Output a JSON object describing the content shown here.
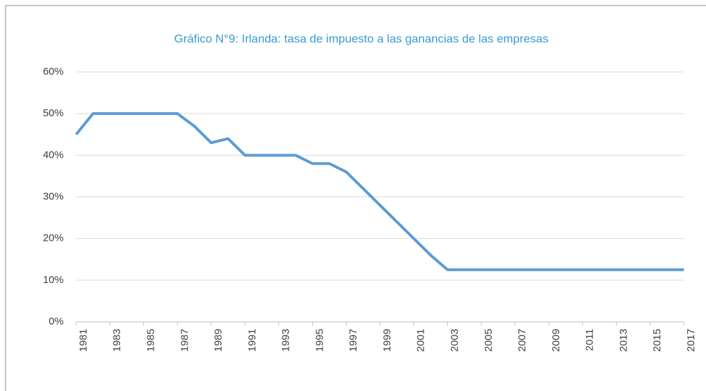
{
  "chart_data": {
    "type": "line",
    "title": "Gráfico N°9: Irlanda: tasa de impuesto a las ganancias de las empresas",
    "x": [
      1981,
      1982,
      1983,
      1984,
      1985,
      1986,
      1987,
      1988,
      1989,
      1990,
      1991,
      1992,
      1993,
      1994,
      1995,
      1996,
      1997,
      1998,
      1999,
      2000,
      2001,
      2002,
      2003,
      2004,
      2005,
      2006,
      2007,
      2008,
      2009,
      2010,
      2011,
      2012,
      2013,
      2014,
      2015,
      2016,
      2017
    ],
    "series": [
      {
        "name": "Irlanda",
        "color": "#5b9bd5",
        "values": [
          45,
          50,
          50,
          50,
          50,
          50,
          50,
          47,
          43,
          44,
          40,
          40,
          40,
          40,
          38,
          38,
          36,
          32,
          28,
          24,
          20,
          16,
          12.5,
          12.5,
          12.5,
          12.5,
          12.5,
          12.5,
          12.5,
          12.5,
          12.5,
          12.5,
          12.5,
          12.5,
          12.5,
          12.5,
          12.5
        ]
      }
    ],
    "xlim": [
      1981,
      2017
    ],
    "xticks": [
      1981,
      1983,
      1985,
      1987,
      1989,
      1991,
      1993,
      1995,
      1997,
      1999,
      2001,
      2003,
      2005,
      2007,
      2009,
      2011,
      2013,
      2015,
      2017
    ],
    "ylim": [
      0,
      60
    ],
    "yticks": [
      {
        "value": 0,
        "label": "0%"
      },
      {
        "value": 10,
        "label": "10%"
      },
      {
        "value": 20,
        "label": "20%"
      },
      {
        "value": 30,
        "label": "30%"
      },
      {
        "value": 40,
        "label": "40%"
      },
      {
        "value": 50,
        "label": "50%"
      },
      {
        "value": 60,
        "label": "60%"
      }
    ],
    "grid": true
  }
}
